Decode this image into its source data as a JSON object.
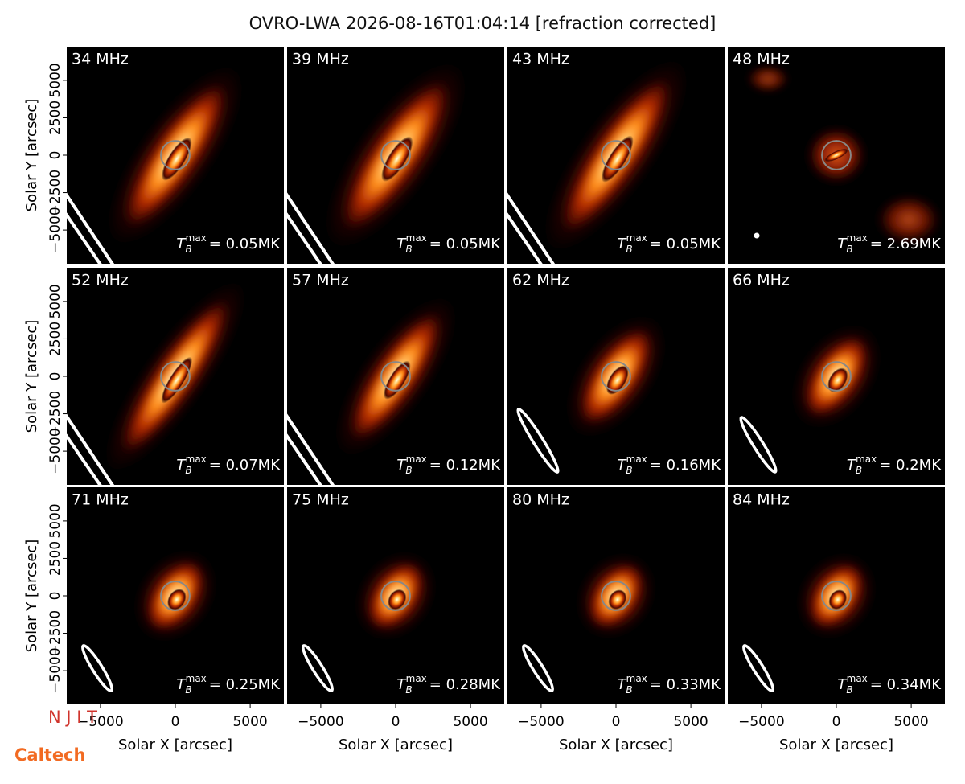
{
  "title": "OVRO-LWA 2026-08-16T01:04:14 [refraction corrected]",
  "axes": {
    "xlabel": "Solar X [arcsec]",
    "ylabel": "Solar Y [arcsec]",
    "xlim": [
      -7250,
      7250
    ],
    "ylim": [
      -7250,
      7250
    ],
    "xticks": [
      {
        "value": -5000,
        "label": "−5000"
      },
      0,
      5000
    ],
    "yticks": [
      {
        "value": -5000,
        "label": "−5000"
      },
      {
        "value": -2500,
        "label": "−2500"
      },
      0,
      2500,
      5000
    ]
  },
  "tb_symbol": {
    "base": "T",
    "sub": "B",
    "sup": "max"
  },
  "logos": [
    "N J I T",
    "Caltech"
  ],
  "chart_data": [
    {
      "type": "image",
      "title": "34 MHz",
      "annotation": "= 0.05MK"
    },
    {
      "type": "image",
      "title": "39 MHz",
      "annotation": "= 0.05MK"
    },
    {
      "type": "image",
      "title": "43 MHz",
      "annotation": "= 0.05MK"
    },
    {
      "type": "image",
      "title": "48 MHz",
      "annotation": "= 2.69MK"
    },
    {
      "type": "image",
      "title": "52 MHz",
      "annotation": "= 0.07MK"
    },
    {
      "type": "image",
      "title": "57 MHz",
      "annotation": "= 0.12MK"
    },
    {
      "type": "image",
      "title": "62 MHz",
      "annotation": "= 0.16MK"
    },
    {
      "type": "image",
      "title": "66 MHz",
      "annotation": "= 0.2MK"
    },
    {
      "type": "image",
      "title": "71 MHz",
      "annotation": "= 0.25MK"
    },
    {
      "type": "image",
      "title": "75 MHz",
      "annotation": "= 0.28MK"
    },
    {
      "type": "image",
      "title": "80 MHz",
      "annotation": "= 0.33MK"
    },
    {
      "type": "image",
      "title": "84 MHz",
      "annotation": "= 0.34MK"
    }
  ]
}
